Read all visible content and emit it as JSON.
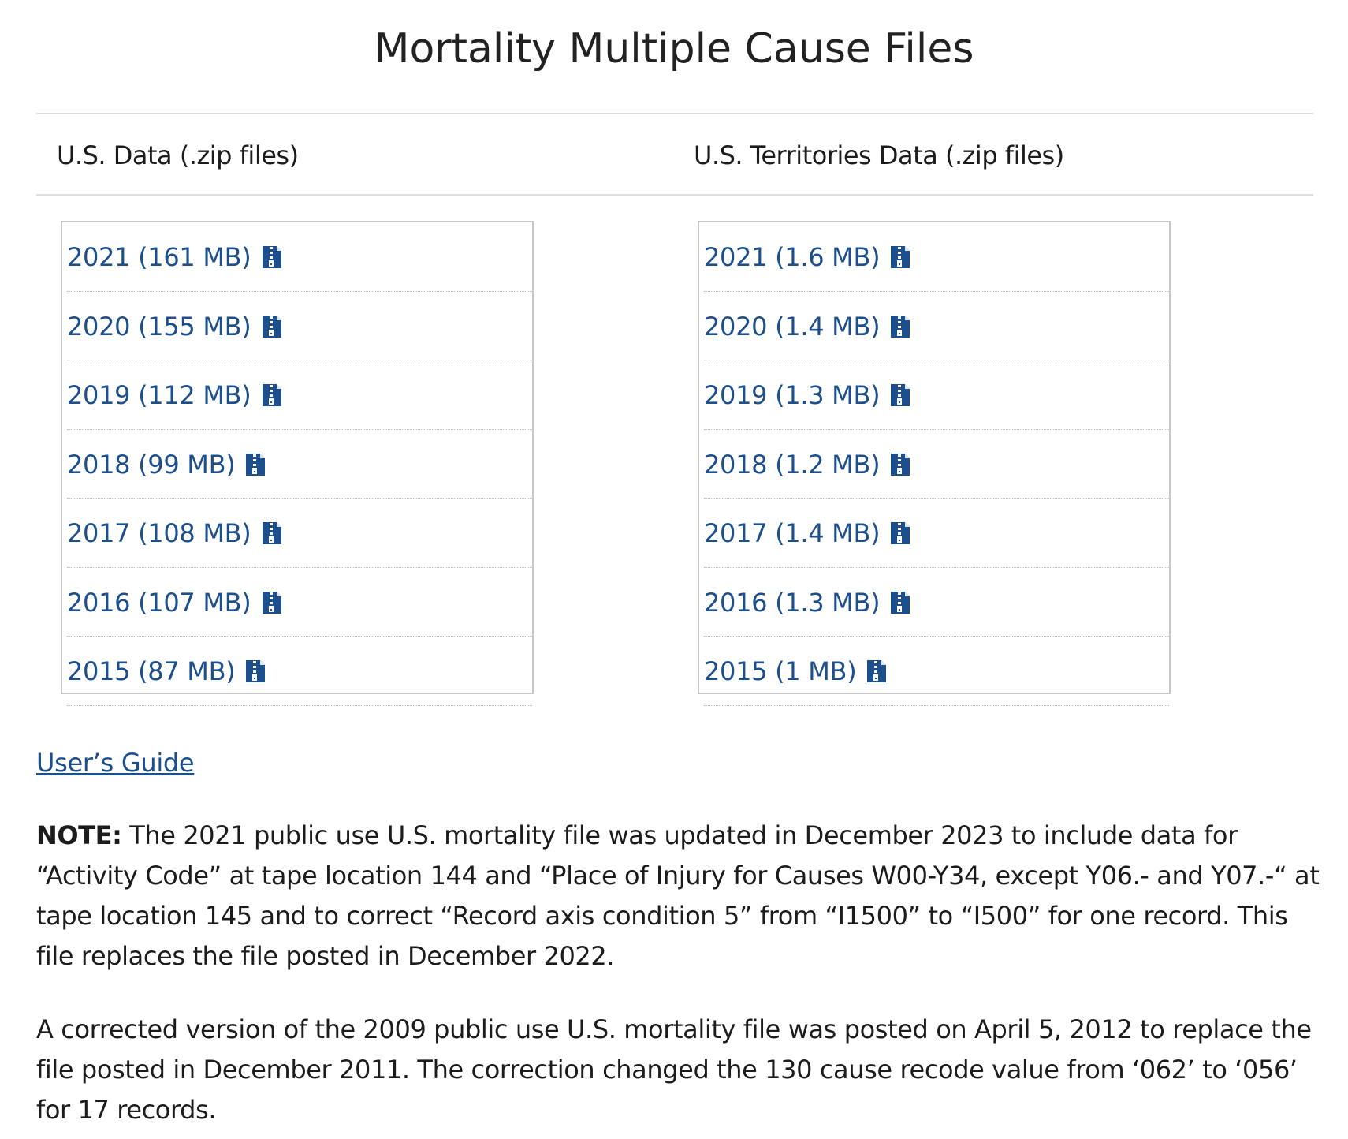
{
  "page": {
    "title": "Mortality Multiple Cause Files"
  },
  "columns": {
    "us": {
      "header": "U.S. Data (.zip files)",
      "files": [
        {
          "label": "2021 (161 MB)"
        },
        {
          "label": "2020 (155 MB)"
        },
        {
          "label": "2019 (112 MB)"
        },
        {
          "label": "2018 (99 MB)"
        },
        {
          "label": "2017 (108 MB)"
        },
        {
          "label": "2016 (107 MB)"
        },
        {
          "label": "2015 (87 MB)"
        }
      ]
    },
    "territories": {
      "header": "U.S. Territories Data (.zip files)",
      "files": [
        {
          "label": "2021 (1.6 MB)"
        },
        {
          "label": "2020 (1.4 MB)"
        },
        {
          "label": "2019 (1.3 MB)"
        },
        {
          "label": "2018 (1.2 MB)"
        },
        {
          "label": "2017 (1.4 MB)"
        },
        {
          "label": "2016 (1.3 MB)"
        },
        {
          "label": "2015 (1 MB)"
        }
      ]
    }
  },
  "guide": {
    "label": "User’s Guide"
  },
  "notes": {
    "note1_label": "NOTE:",
    "note1_text": " The 2021 public use U.S. mortality file was updated in December 2023 to include data for “Activity Code” at tape location 144 and “Place of Injury for Causes W00-Y34, except Y06.- and Y07.-“ at tape location 145 and to correct “Record axis condition 5” from “I1500” to “I500” for one record. This file replaces the file posted in December 2022.",
    "note2_text": "A corrected version of the 2009 public use U.S. mortality file was posted on April 5, 2012 to replace the file posted in December 2011. The correction changed the 130 cause recode value from ‘062’ to ‘056’ for 17 records."
  },
  "colors": {
    "link": "#1d4f8c",
    "icon": "#1d4f8c",
    "text": "#1c1c1c",
    "border": "#c9c9c9"
  },
  "icons": {
    "file": "zip-file-icon"
  }
}
